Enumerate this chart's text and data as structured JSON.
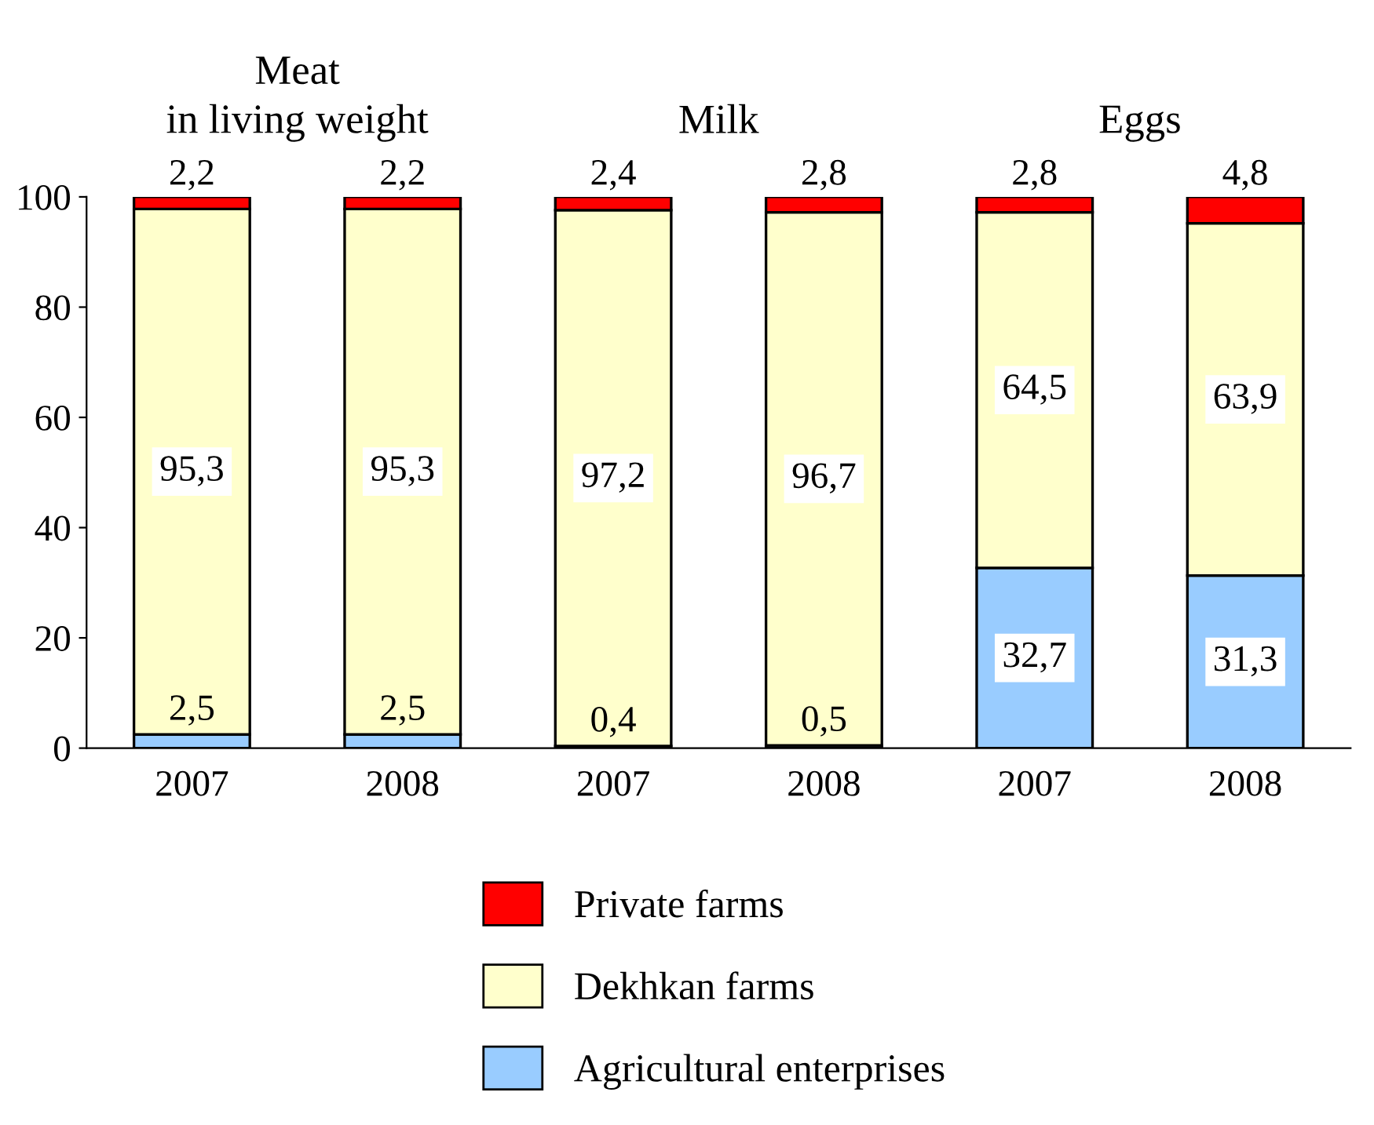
{
  "chart_data": {
    "type": "bar",
    "stacked": true,
    "categories": [
      "2007",
      "2008",
      "2007",
      "2008",
      "2007",
      "2008"
    ],
    "annotations": [
      "Meat\nin living weight",
      "Milk",
      "Eggs"
    ],
    "series": [
      {
        "name": "Agricultural enterprises",
        "color": "#99ccff",
        "values": [
          2.5,
          2.5,
          0.4,
          0.5,
          32.7,
          31.3
        ],
        "value_labels": [
          "2,5",
          "2,5",
          "0,4",
          "0,5",
          "32,7",
          "31,3"
        ]
      },
      {
        "name": "Dekhkan farms",
        "color": "#ffffcc",
        "values": [
          95.3,
          95.3,
          97.2,
          96.7,
          64.5,
          63.9
        ],
        "value_labels": [
          "95,3",
          "95,3",
          "97,2",
          "96,7",
          "64,5",
          "63,9"
        ]
      },
      {
        "name": "Private farms",
        "color": "#ff0000",
        "values": [
          2.2,
          2.2,
          2.4,
          2.8,
          2.8,
          4.8
        ],
        "value_labels": [
          "2,2",
          "2,2",
          "2,4",
          "2,8",
          "2,8",
          "4,8"
        ]
      }
    ],
    "ylim": [
      0,
      100
    ],
    "yticks": [
      0,
      20,
      40,
      60,
      80,
      100
    ],
    "grid": false,
    "legend": "bottom"
  }
}
